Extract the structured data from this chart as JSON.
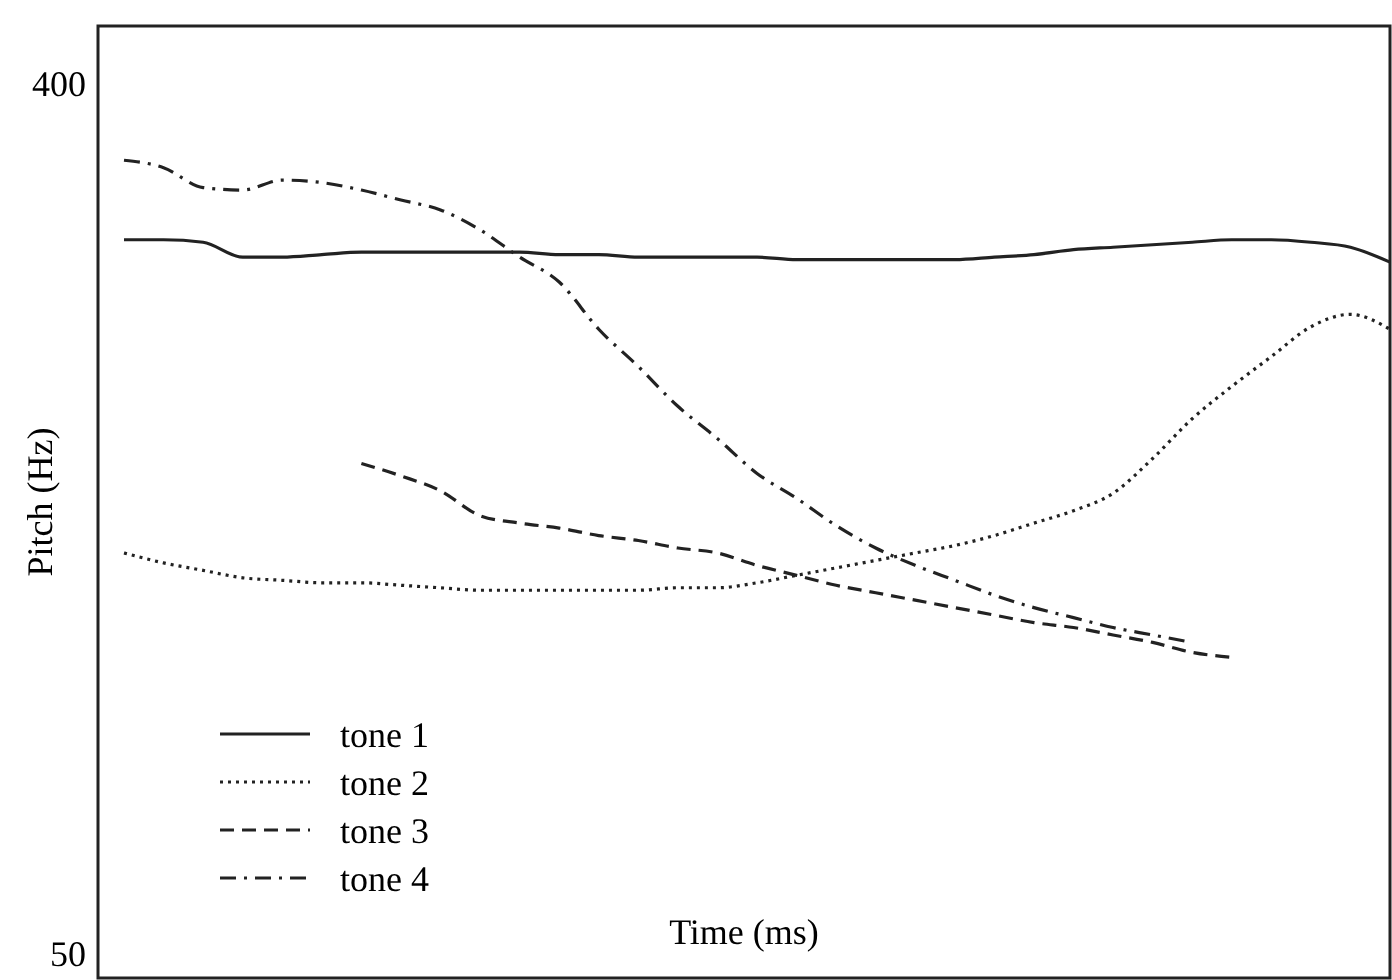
{
  "chart_data": {
    "type": "line",
    "xlabel": "Time (ms)",
    "ylabel": "Pitch (Hz)",
    "categories": [
      null,
      null,
      null,
      null,
      null,
      null,
      null,
      null,
      null,
      null,
      null,
      null,
      null,
      null,
      null,
      null,
      null,
      null,
      null,
      null,
      null,
      null,
      null,
      null,
      null,
      null,
      null,
      null,
      null,
      null,
      null,
      null,
      null
    ],
    "ylim": [
      40,
      423
    ],
    "yticks": [
      400,
      50
    ],
    "legend": "bottom left",
    "grid": false,
    "series": [
      {
        "name": "tone 1",
        "color": "#222222",
        "line_style": "solid",
        "values": [
          337,
          337,
          336,
          330,
          330,
          331,
          332,
          332,
          332,
          332,
          332,
          331,
          331,
          330,
          330,
          330,
          330,
          329,
          329,
          329,
          329,
          329,
          330,
          331,
          333,
          334,
          335,
          336,
          337,
          337,
          336,
          334,
          328
        ]
      },
      {
        "name": "tone 2",
        "color": "#222222",
        "line_style": "dotted",
        "values": [
          211,
          207,
          204,
          201,
          200,
          199,
          199,
          198,
          197,
          196,
          196,
          196,
          196,
          196,
          197,
          197,
          199,
          202,
          205,
          208,
          211,
          214,
          218,
          223,
          228,
          235,
          249,
          265,
          278,
          290,
          302,
          307,
          301
        ]
      },
      {
        "name": "tone 3",
        "color": "#222222",
        "line_style": "dashed",
        "values": [
          null,
          null,
          null,
          null,
          null,
          null,
          247,
          242,
          236,
          226,
          223,
          221,
          218,
          216,
          213,
          211,
          206,
          202,
          198,
          195,
          192,
          189,
          186,
          183,
          181,
          178,
          175,
          171,
          169,
          null,
          null,
          null,
          null
        ]
      },
      {
        "name": "tone 4",
        "color": "#222222",
        "line_style": "dashdot",
        "values": [
          369,
          366,
          358,
          357,
          361,
          360,
          357,
          353,
          349,
          341,
          330,
          320,
          301,
          286,
          270,
          257,
          243,
          233,
          222,
          213,
          206,
          200,
          194,
          189,
          185,
          181,
          178,
          175,
          null,
          null,
          null,
          null,
          null
        ]
      }
    ]
  }
}
